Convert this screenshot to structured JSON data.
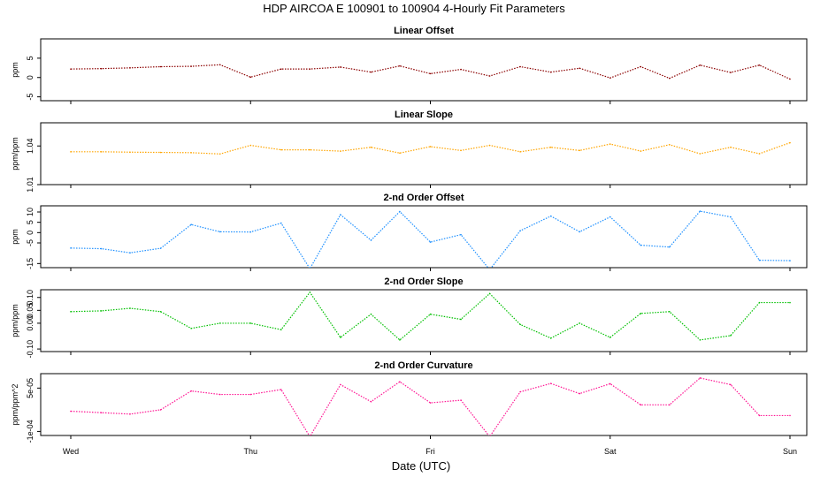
{
  "title": "HDP   AIRCOA E   100901 to 100904   4-Hourly Fit Parameters",
  "xlabel": "Date (UTC)",
  "xtick_labels": [
    "Wed",
    "Thu",
    "Fri",
    "Sat",
    "Sun"
  ],
  "chart_data": [
    {
      "type": "line",
      "title": "Linear Offset",
      "ylabel": "ppm",
      "color": "#8b0000",
      "ylim": [
        -6,
        10
      ],
      "yticks": [
        -5,
        0,
        5
      ],
      "ytick_labels": [
        "-5",
        "0",
        "5"
      ],
      "x": [
        0,
        0.17,
        0.33,
        0.5,
        0.67,
        0.83,
        1.0,
        1.17,
        1.33,
        1.5,
        1.67,
        1.83,
        2.0,
        2.17,
        2.33,
        2.5,
        2.67,
        2.83,
        3.0,
        3.17,
        3.33,
        3.5,
        3.67,
        3.83,
        4.0
      ],
      "values": [
        2.2,
        2.3,
        2.5,
        2.8,
        2.9,
        3.3,
        0.1,
        2.2,
        2.2,
        2.7,
        1.4,
        3.0,
        1.0,
        2.1,
        0.4,
        2.8,
        1.4,
        2.4,
        -0.1,
        2.8,
        -0.2,
        3.2,
        1.3,
        3.2,
        -0.4
      ]
    },
    {
      "type": "line",
      "title": "Linear Slope",
      "ylabel": "ppm/ppm",
      "color": "#ffa500",
      "ylim": [
        1.01,
        1.058
      ],
      "yticks": [
        1.01,
        1.04
      ],
      "ytick_labels": [
        "1.01",
        "1.04"
      ],
      "x": [
        0,
        0.17,
        0.33,
        0.5,
        0.67,
        0.83,
        1.0,
        1.17,
        1.33,
        1.5,
        1.67,
        1.83,
        2.0,
        2.17,
        2.33,
        2.5,
        2.67,
        2.83,
        3.0,
        3.17,
        3.33,
        3.5,
        3.67,
        3.83,
        4.0
      ],
      "values": [
        1.0355,
        1.0355,
        1.0352,
        1.035,
        1.0348,
        1.0338,
        1.0405,
        1.037,
        1.037,
        1.036,
        1.039,
        1.0345,
        1.0395,
        1.0365,
        1.0405,
        1.0355,
        1.039,
        1.0365,
        1.0415,
        1.036,
        1.041,
        1.034,
        1.039,
        1.034,
        1.0425
      ]
    },
    {
      "type": "line",
      "title": "2-nd Order Offset",
      "ylabel": "ppm",
      "color": "#1e90ff",
      "ylim": [
        -17,
        13
      ],
      "yticks": [
        -15,
        -5,
        0,
        5,
        10
      ],
      "ytick_labels": [
        "-15",
        "-5",
        "0",
        "5",
        "10"
      ],
      "x": [
        0,
        0.17,
        0.33,
        0.5,
        0.67,
        0.83,
        1.0,
        1.17,
        1.33,
        1.5,
        1.67,
        1.83,
        2.0,
        2.17,
        2.33,
        2.5,
        2.67,
        2.83,
        3.0,
        3.17,
        3.33,
        3.5,
        3.67,
        3.83,
        4.0
      ],
      "values": [
        -7.5,
        -7.8,
        -9.8,
        -7.6,
        3.9,
        0.4,
        0.3,
        4.6,
        -17.5,
        8.7,
        -3.7,
        10.2,
        -4.6,
        -1.0,
        -18.0,
        0.9,
        8.0,
        0.4,
        7.6,
        -6.1,
        -7.0,
        10.4,
        7.6,
        -13.4,
        -13.6
      ]
    },
    {
      "type": "line",
      "title": "2-nd Order Slope",
      "ylabel": "ppm/ppm",
      "color": "#00c000",
      "ylim": [
        -0.11,
        0.13
      ],
      "yticks": [
        -0.1,
        0.0,
        0.05,
        0.1
      ],
      "ytick_labels": [
        "-0.10",
        "0.00",
        "0.05",
        "0.10"
      ],
      "x": [
        0,
        0.17,
        0.33,
        0.5,
        0.67,
        0.83,
        1.0,
        1.17,
        1.33,
        1.5,
        1.67,
        1.83,
        2.0,
        2.17,
        2.33,
        2.5,
        2.67,
        2.83,
        3.0,
        3.17,
        3.33,
        3.5,
        3.67,
        3.83,
        4.0
      ],
      "values": [
        0.045,
        0.048,
        0.058,
        0.045,
        -0.02,
        0.0,
        0.0,
        -0.025,
        0.12,
        -0.055,
        0.035,
        -0.065,
        0.035,
        0.015,
        0.115,
        -0.005,
        -0.058,
        0.0,
        -0.055,
        0.038,
        0.045,
        -0.065,
        -0.048,
        0.08,
        0.08
      ]
    },
    {
      "type": "line",
      "title": "2-nd Order Curvature",
      "ylabel": "ppm/ppm^2",
      "color": "#ff1493",
      "ylim": [
        -0.000114,
        0.0001
      ],
      "yticks": [
        -0.0001,
        5e-05
      ],
      "ytick_labels": [
        "-1e-04",
        "5e-05"
      ],
      "x": [
        0,
        0.17,
        0.33,
        0.5,
        0.67,
        0.83,
        1.0,
        1.17,
        1.33,
        1.5,
        1.67,
        1.83,
        2.0,
        2.17,
        2.33,
        2.5,
        2.67,
        2.83,
        3.0,
        3.17,
        3.33,
        3.5,
        3.67,
        3.83,
        4.0
      ],
      "values": [
        -3e-05,
        -3.5e-05,
        -4e-05,
        -2.5e-05,
        4e-05,
        2.8e-05,
        2.8e-05,
        4.5e-05,
        -0.000118,
        6.2e-05,
        3e-06,
        7.2e-05,
        -1e-06,
        8e-06,
        -0.000118,
        3.7e-05,
        6.6e-05,
        3.1e-05,
        6.5e-05,
        -8e-06,
        -8e-06,
        8.5e-05,
        6.2e-05,
        -4.5e-05,
        -4.5e-05
      ]
    }
  ]
}
